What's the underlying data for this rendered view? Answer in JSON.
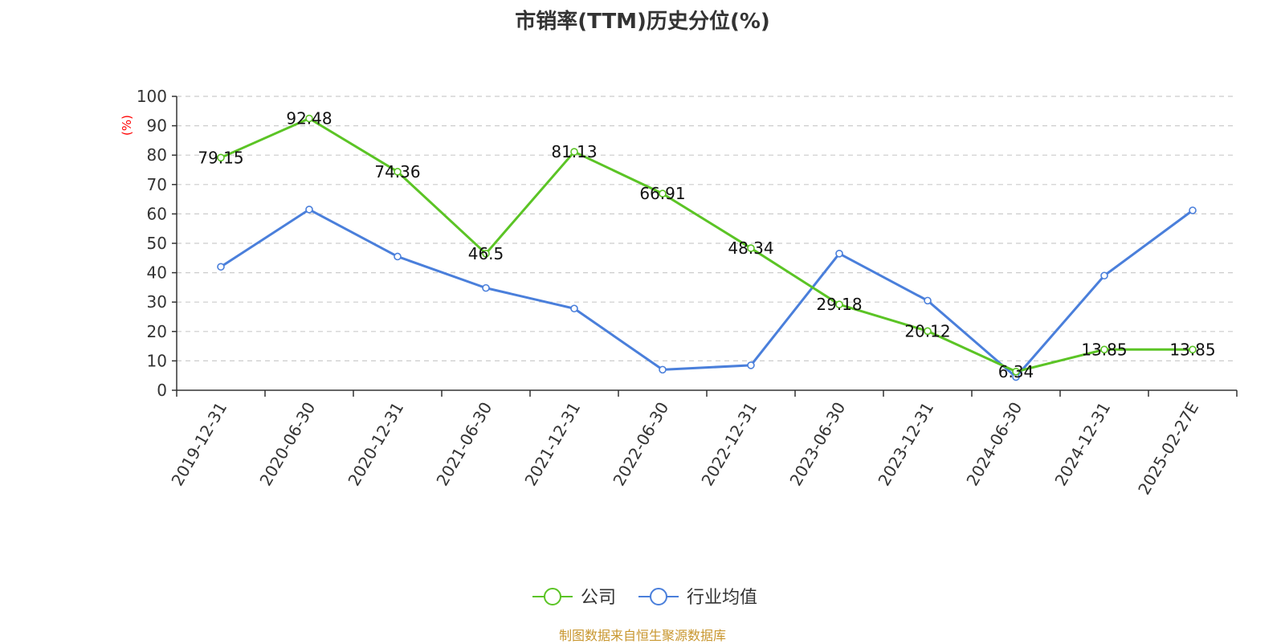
{
  "chart_data": {
    "type": "line",
    "title": "市销率(TTM)历史分位(%)",
    "ylabel": "(%)",
    "ylim": [
      0,
      100
    ],
    "yticks": [
      0,
      10,
      20,
      30,
      40,
      50,
      60,
      70,
      80,
      90,
      100
    ],
    "categories": [
      "2019-12-31",
      "2020-06-30",
      "2020-12-31",
      "2021-06-30",
      "2021-12-31",
      "2022-06-30",
      "2022-12-31",
      "2023-06-30",
      "2023-12-31",
      "2024-06-30",
      "2024-12-31",
      "2025-02-27E"
    ],
    "series": [
      {
        "name": "公司",
        "color": "#5bc425",
        "values": [
          79.15,
          92.48,
          74.36,
          46.5,
          81.13,
          66.91,
          48.34,
          29.18,
          20.12,
          6.34,
          13.85,
          13.85
        ],
        "labels": [
          "79.15",
          "92.48",
          "74.36",
          "46.5",
          "81.13",
          "66.91",
          "48.34",
          "29.18",
          "20.12",
          "6.34",
          "13.85",
          "13.85"
        ]
      },
      {
        "name": "行业均值",
        "color": "#4a7fdb",
        "values": [
          42,
          61.5,
          45.5,
          34.8,
          27.8,
          7,
          8.5,
          46.5,
          30.5,
          4.5,
          39,
          61.2
        ]
      }
    ],
    "grid": true,
    "legend_position": "bottom-center"
  },
  "footer": {
    "source": "制图数据来自恒生聚源数据库"
  },
  "colors": {
    "unit_label": "#ff0000",
    "axis": "#333333",
    "grid": "#cccccc"
  }
}
